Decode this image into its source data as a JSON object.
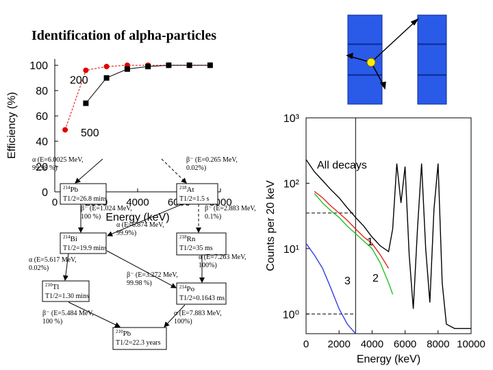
{
  "title": "Identification of alpha-particles",
  "chart_data": [
    {
      "type": "line",
      "y_label": "Efficiency (%)",
      "x_label": "Energy (keV)",
      "x": [
        500,
        1500,
        2500,
        3500,
        4500,
        5500,
        6500,
        7500
      ],
      "series": [
        {
          "name": "200",
          "color": "#e00000",
          "marker": "circle",
          "dash": true,
          "values": [
            49,
            96,
            99,
            100,
            100,
            100,
            100,
            100
          ]
        },
        {
          "name": "500",
          "color": "#000000",
          "marker": "square",
          "dash": false,
          "values": [
            null,
            70,
            90,
            97,
            99,
            100,
            100,
            100
          ]
        }
      ],
      "xlim": [
        0,
        8000
      ],
      "ylim": [
        0,
        105
      ],
      "xticks": [
        0,
        2000,
        4000,
        6000,
        8000
      ],
      "yticks": [
        0,
        20,
        40,
        60,
        80,
        100
      ]
    },
    {
      "type": "line",
      "log_y": true,
      "y_label": "Counts per 20 keV",
      "x_label": "Energy (keV)",
      "x": [
        0,
        500,
        1000,
        1500,
        2000,
        2500,
        3000,
        3500,
        4000,
        4500,
        5000,
        5250,
        5500,
        5750,
        6000,
        6250,
        6500,
        6750,
        7000,
        7250,
        7500,
        7750,
        8000,
        8250,
        8500,
        9000,
        9500,
        10000
      ],
      "series": [
        {
          "name": "All decays",
          "color": "#000000",
          "values": [
            230,
            150,
            110,
            80,
            60,
            42,
            30,
            22,
            15,
            11,
            9,
            20,
            200,
            50,
            180,
            8,
            1.2,
            20,
            200,
            10,
            1.5,
            40,
            200,
            3,
            0.7,
            0.6,
            0.6,
            0.6
          ]
        },
        {
          "name": "1",
          "color": "#e02020",
          "values": [
            null,
            75,
            60,
            45,
            35,
            27,
            20,
            15,
            12,
            8,
            5,
            null,
            null,
            null,
            null,
            null,
            null,
            null,
            null,
            null,
            null,
            null,
            null,
            null,
            null,
            null,
            null,
            null
          ]
        },
        {
          "name": "2",
          "color": "#20c020",
          "values": [
            null,
            70,
            50,
            38,
            30,
            22,
            17,
            13,
            10,
            6,
            3,
            2,
            null,
            null,
            null,
            null,
            null,
            null,
            null,
            null,
            null,
            null,
            null,
            null,
            null,
            null,
            null,
            null
          ]
        },
        {
          "name": "3",
          "color": "#3040e0",
          "values": [
            12,
            8,
            5,
            2.5,
            1.2,
            0.7,
            0.5,
            null,
            null,
            null,
            null,
            null,
            null,
            null,
            null,
            null,
            null,
            null,
            null,
            null,
            null,
            null,
            null,
            null,
            null,
            null,
            null,
            null
          ]
        }
      ],
      "xlim": [
        0,
        10000
      ],
      "ylim": [
        0.5,
        1000
      ],
      "xticks": [
        0,
        2000,
        4000,
        6000,
        8000,
        10000
      ],
      "yticks": [
        {
          "value": 1000,
          "label": "10³"
        },
        {
          "value": 100,
          "label": "10²"
        },
        {
          "value": 10,
          "label": "10¹"
        },
        {
          "value": 1,
          "label": "10⁰"
        }
      ],
      "vline": 3000,
      "hlines": [
        35,
        1
      ]
    }
  ],
  "decay_diagram": {
    "nodes": [
      {
        "mass": "214",
        "element": "Pb",
        "halflife": "T1/2=26.8 mins"
      },
      {
        "mass": "218",
        "element": "At",
        "halflife": "T1/2=1.5 s"
      },
      {
        "mass": "214",
        "element": "Bi",
        "halflife": "T1/2=19.9 mins"
      },
      {
        "mass": "218",
        "element": "Rn",
        "halflife": "T1/2=35 ms"
      },
      {
        "mass": "210",
        "element": "Tl",
        "halflife": "T1/2=1.30 mins"
      },
      {
        "mass": "214",
        "element": "Po",
        "halflife": "T1/2=0.1643 ms"
      },
      {
        "mass": "210",
        "element": "Pb",
        "halflife": "T1/2=22.3 years"
      }
    ],
    "transitions": [
      {
        "lines": [
          "α (E=6.0025 MeV,",
          "99.98 %)"
        ]
      },
      {
        "lines": [
          "β⁻ (E=0.265 MeV,",
          "0.02%)"
        ]
      },
      {
        "lines": [
          "β⁻ (E=1.024 MeV,",
          "100 %)"
        ]
      },
      {
        "lines": [
          "α (E=6.874 MeV,",
          "99.9%)"
        ]
      },
      {
        "lines": [
          "β⁻ (E=2.883 MeV,",
          "0.1%)"
        ]
      },
      {
        "lines": [
          "α (E=5.617 MeV,",
          "0.02%)"
        ]
      },
      {
        "lines": [
          "α (E=7.263 MeV,",
          "100%)"
        ]
      },
      {
        "lines": [
          "β⁻ (E=3.272 MeV,",
          "99.98 %)"
        ]
      },
      {
        "lines": [
          "β⁻ (E=5.484 MeV,",
          "100 %)"
        ]
      },
      {
        "lines": [
          "α (E=7.883 MeV,",
          "100%)"
        ]
      }
    ]
  }
}
